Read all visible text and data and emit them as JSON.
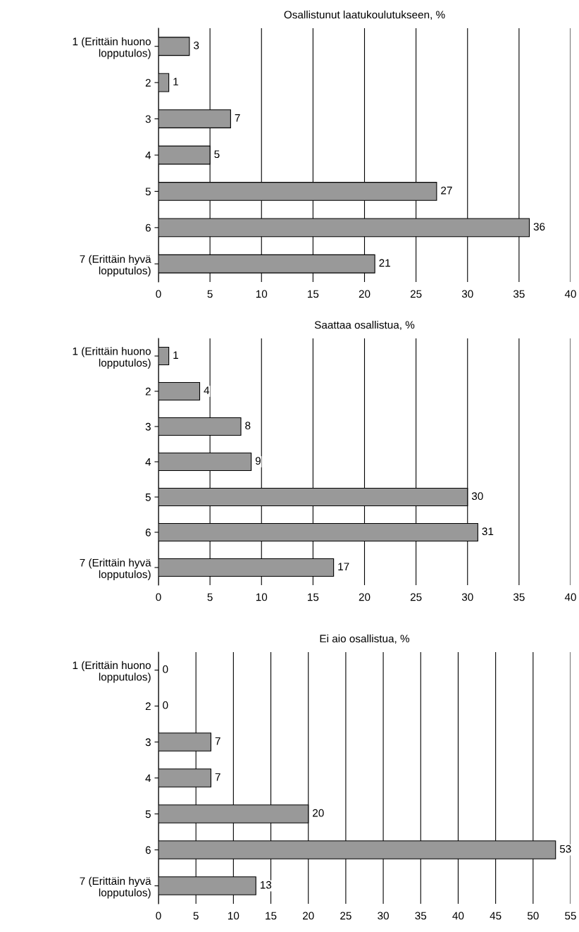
{
  "chart_data": [
    {
      "type": "bar",
      "orientation": "horizontal",
      "title": "Osallistunut laatukoulutukseen, %",
      "categories": [
        "1 (Erittäin huono\nlopputulos)",
        "2",
        "3",
        "4",
        "5",
        "6",
        "7 (Erittäin hyvä\nlopputulos)"
      ],
      "values": [
        3,
        1,
        7,
        5,
        27,
        36,
        21
      ],
      "color": "#999999",
      "xlim": [
        0,
        40
      ],
      "xticks": [
        0,
        5,
        10,
        15,
        20,
        25,
        30,
        35,
        40
      ],
      "grid": "x",
      "data_labels": true
    },
    {
      "type": "bar",
      "orientation": "horizontal",
      "title": "Saattaa osallistua, %",
      "categories": [
        "1 (Erittäin huono\nlopputulos)",
        "2",
        "3",
        "4",
        "5",
        "6",
        "7 (Erittäin hyvä\nlopputulos)"
      ],
      "values": [
        1,
        4,
        8,
        9,
        30,
        31,
        17
      ],
      "color": "#999999",
      "xlim": [
        0,
        40
      ],
      "xticks": [
        0,
        5,
        10,
        15,
        20,
        25,
        30,
        35,
        40
      ],
      "grid": "x",
      "data_labels": true
    },
    {
      "type": "bar",
      "orientation": "horizontal",
      "title": "Ei aio osallistua, %",
      "categories": [
        "1 (Erittäin huono\nlopputulos)",
        "2",
        "3",
        "4",
        "5",
        "6",
        "7 (Erittäin hyvä\nlopputulos)"
      ],
      "values": [
        0,
        0,
        7,
        7,
        20,
        53,
        13
      ],
      "color": "#999999",
      "xlim": [
        0,
        55
      ],
      "xticks": [
        0,
        5,
        10,
        15,
        20,
        25,
        30,
        35,
        40,
        45,
        50,
        55
      ],
      "grid": "x",
      "data_labels": true
    }
  ]
}
